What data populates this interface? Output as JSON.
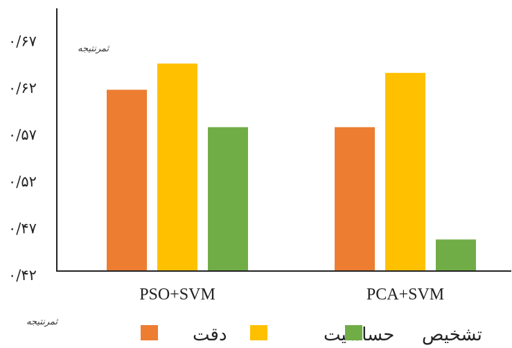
{
  "chart_data": {
    "type": "bar",
    "categories": [
      "PSO+SVM",
      "PCA+SVM"
    ],
    "series": [
      {
        "name": "دقت",
        "color": "#ED7D31",
        "values": [
          0.618,
          0.578
        ]
      },
      {
        "name": "حساسیت",
        "color": "#FFC000",
        "values": [
          0.646,
          0.636
        ]
      },
      {
        "name": "تشخیص",
        "color": "#70AD47",
        "values": [
          0.578,
          0.458
        ]
      }
    ],
    "ylim": [
      0.425,
      0.705
    ],
    "yticks": [
      {
        "value": 0.42,
        "label": "۰/۴۲"
      },
      {
        "value": 0.47,
        "label": "۰/۴۷"
      },
      {
        "value": 0.52,
        "label": "۰/۵۲"
      },
      {
        "value": 0.57,
        "label": "۰/۵۷"
      },
      {
        "value": 0.62,
        "label": "۰/۶۲"
      },
      {
        "value": 0.67,
        "label": "۰/۶۷"
      }
    ],
    "grid": false,
    "legend_position": "bottom"
  },
  "watermarks": [
    "ثمرنتیجه",
    "ثمرنتیجه"
  ]
}
